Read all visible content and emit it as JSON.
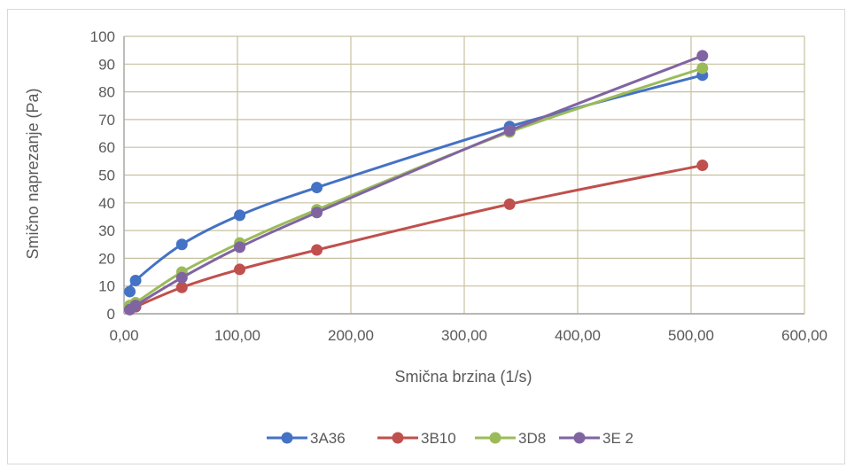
{
  "chart_data": {
    "type": "line",
    "title": "",
    "xlabel": "Smična brzina (1/s)",
    "ylabel": "Smično naprezanje (Pa)",
    "xlim": [
      0,
      600
    ],
    "ylim": [
      0,
      100
    ],
    "x_ticks": [
      0,
      100,
      200,
      300,
      400,
      500,
      600
    ],
    "x_tick_labels": [
      "0,00",
      "100,00",
      "200,00",
      "300,00",
      "400,00",
      "500,00",
      "600,00"
    ],
    "y_ticks": [
      0,
      10,
      20,
      30,
      40,
      50,
      60,
      70,
      80,
      90,
      100
    ],
    "y_tick_labels": [
      "0",
      "10",
      "20",
      "30",
      "40",
      "50",
      "60",
      "70",
      "80",
      "90",
      "100"
    ],
    "grid": true,
    "legend_position": "bottom",
    "smooth": true,
    "x": [
      5.1,
      10.2,
      51,
      102,
      170,
      340,
      510
    ],
    "series": [
      {
        "name": "3A36",
        "color": "#4472c4",
        "values": [
          8,
          12,
          25,
          35.5,
          45.5,
          67.5,
          86
        ]
      },
      {
        "name": "3B10",
        "color": "#c0504d",
        "values": [
          1.5,
          2.5,
          9.5,
          16,
          23,
          39.5,
          53.5
        ]
      },
      {
        "name": "3D8",
        "color": "#9bbb59",
        "values": [
          3,
          4,
          15,
          25.5,
          37.5,
          65.5,
          88.5
        ]
      },
      {
        "name": "3E 2",
        "color": "#8064a2",
        "values": [
          1.5,
          3,
          13,
          24,
          36.5,
          66,
          93
        ]
      }
    ]
  }
}
